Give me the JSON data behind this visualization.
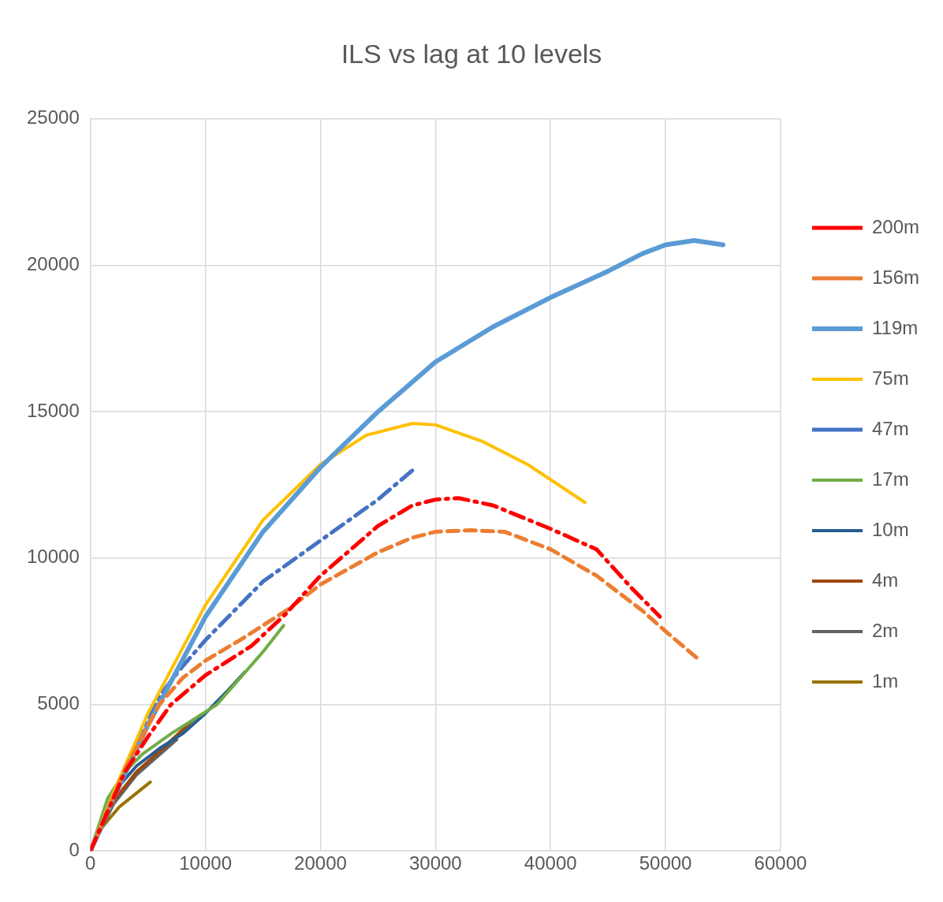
{
  "chart_data": {
    "type": "line",
    "title": "ILS vs lag at 10 levels",
    "xlim": [
      0,
      60000
    ],
    "xticks": [
      0,
      10000,
      20000,
      30000,
      40000,
      50000,
      60000
    ],
    "ylim": [
      0,
      25000
    ],
    "yticks": [
      0,
      5000,
      10000,
      15000,
      20000,
      25000
    ],
    "grid": true,
    "legend": "right",
    "marker": "none",
    "series": [
      {
        "name": "200m",
        "color": "#ff0000",
        "line_style": "dashdot",
        "x": [
          0,
          3000,
          5000,
          7000,
          10000,
          14000,
          17000,
          20000,
          25000,
          28000,
          30000,
          32000,
          35000,
          40000,
          44000,
          47000,
          49500
        ],
        "values": [
          0,
          2700,
          3900,
          5000,
          6000,
          7000,
          8100,
          9400,
          11100,
          11800,
          12000,
          12050,
          11800,
          11000,
          10300,
          9000,
          8000
        ]
      },
      {
        "name": "156m",
        "color": "#ed7d31",
        "line_style": "dashed",
        "x": [
          0,
          3000,
          6000,
          8000,
          10000,
          13000,
          17000,
          20000,
          25000,
          28000,
          30000,
          33000,
          36000,
          40000,
          44000,
          48000,
          50000,
          53000
        ],
        "values": [
          0,
          2800,
          5000,
          5900,
          6500,
          7200,
          8200,
          9100,
          10200,
          10700,
          10900,
          10950,
          10900,
          10300,
          9400,
          8200,
          7500,
          6500
        ]
      },
      {
        "name": "119m",
        "color": "#5b9bd5",
        "line_style": "solid",
        "x": [
          0,
          2000,
          5000,
          10000,
          15000,
          20000,
          25000,
          30000,
          35000,
          40000,
          45000,
          48000,
          50000,
          52500,
          55000
        ],
        "values": [
          0,
          1800,
          4300,
          8000,
          10900,
          13100,
          15000,
          16700,
          17900,
          18900,
          19800,
          20400,
          20700,
          20850,
          20700
        ]
      },
      {
        "name": "75m",
        "color": "#ffc000",
        "line_style": "solid",
        "x": [
          0,
          2000,
          5000,
          10000,
          15000,
          20000,
          24000,
          28000,
          30000,
          34000,
          38000,
          43000
        ],
        "values": [
          0,
          2000,
          4700,
          8400,
          11300,
          13200,
          14200,
          14600,
          14550,
          14000,
          13200,
          11900
        ]
      },
      {
        "name": "47m",
        "color": "#4472c4",
        "line_style": "dashdot",
        "x": [
          0,
          3000,
          6000,
          8000,
          10000,
          15000,
          20000,
          25000,
          28000
        ],
        "values": [
          0,
          2700,
          5300,
          6300,
          7200,
          9200,
          10600,
          12000,
          13000
        ]
      },
      {
        "name": "17m",
        "color": "#70ad47",
        "line_style": "solid",
        "x": [
          0,
          1500,
          3000,
          4500,
          7000,
          9000,
          11000,
          13000,
          15000,
          16800
        ],
        "values": [
          0,
          1800,
          2700,
          3300,
          4000,
          4500,
          5000,
          5900,
          6800,
          7700
        ]
      },
      {
        "name": "10m",
        "color": "#255e91",
        "line_style": "solid",
        "x": [
          0,
          2000,
          4000,
          6000,
          8000,
          10000,
          12000,
          13400
        ],
        "values": [
          0,
          2000,
          2900,
          3500,
          4000,
          4700,
          5500,
          6100
        ]
      },
      {
        "name": "4m",
        "color": "#9e480e",
        "line_style": "solid",
        "x": [
          0,
          2000,
          4000,
          6000,
          9000
        ],
        "values": [
          0,
          1700,
          2700,
          3400,
          4500
        ]
      },
      {
        "name": "2m",
        "color": "#636363",
        "line_style": "solid",
        "x": [
          0,
          2000,
          4000,
          7500
        ],
        "values": [
          0,
          1600,
          2600,
          3800
        ]
      },
      {
        "name": "1m",
        "color": "#997300",
        "line_style": "solid",
        "x": [
          0,
          1000,
          2500,
          5200
        ],
        "values": [
          0,
          800,
          1500,
          2350
        ]
      }
    ]
  }
}
